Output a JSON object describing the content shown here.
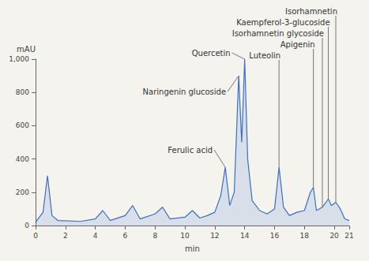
{
  "chart_data": {
    "type": "line",
    "xlabel": "min",
    "ylabel": "mAU",
    "x": [
      0,
      0.5,
      0.8,
      1.1,
      1.5,
      3,
      4,
      4.5,
      5,
      6,
      6.5,
      7,
      8,
      8.5,
      9,
      10,
      10.5,
      11,
      11.5,
      12,
      12.4,
      12.7,
      13,
      13.3,
      13.6,
      13.8,
      14.0,
      14.2,
      14.5,
      15,
      15.5,
      16,
      16.3,
      16.6,
      17,
      17.5,
      18,
      18.4,
      18.6,
      18.8,
      19.2,
      19.6,
      19.8,
      20.1,
      20.4,
      20.7,
      21
    ],
    "values": [
      20,
      80,
      300,
      60,
      30,
      25,
      40,
      90,
      30,
      60,
      120,
      40,
      70,
      110,
      40,
      50,
      90,
      45,
      60,
      80,
      180,
      350,
      120,
      200,
      900,
      500,
      1000,
      400,
      150,
      90,
      70,
      100,
      350,
      110,
      60,
      80,
      90,
      200,
      230,
      90,
      110,
      160,
      120,
      140,
      100,
      40,
      30
    ],
    "color": "#3b6fc6",
    "xlim": [
      0,
      21
    ],
    "xticks": [
      0,
      2,
      4,
      6,
      8,
      10,
      12,
      14,
      16,
      18,
      20
    ],
    "ylim": [
      0,
      1000
    ],
    "yticks": [
      0,
      200,
      400,
      600,
      800,
      1000
    ],
    "grid": false,
    "annotations": [
      {
        "text": "Ferulic acid",
        "x": 12.7
      },
      {
        "text": "Naringenin glucoside",
        "x": 13.6
      },
      {
        "text": "Quercetin",
        "x": 14.0
      },
      {
        "text": "Luteolin",
        "x": 16.3
      },
      {
        "text": "Apigenin",
        "x": 18.6
      },
      {
        "text": "Kaempferol-3-glucoside",
        "x": 19.6
      },
      {
        "text": "Isorhamnetin glycoside",
        "x": 19.2
      },
      {
        "text": "Isorhamnetin",
        "x": 20.1
      }
    ]
  }
}
